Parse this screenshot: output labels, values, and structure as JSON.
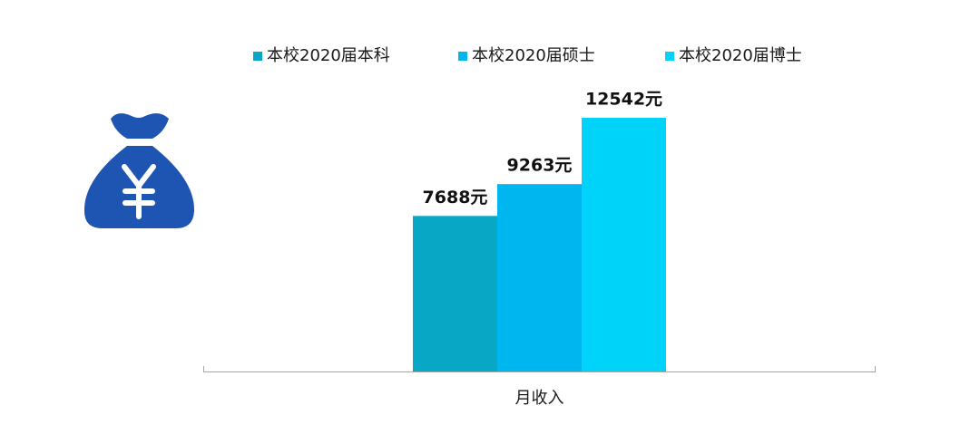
{
  "chart_data": {
    "type": "bar",
    "categories": [
      "月收入"
    ],
    "series": [
      {
        "name": "本校2020届本科",
        "color": "#07a7c5",
        "values": [
          7688
        ],
        "value_labels": [
          "7688元"
        ]
      },
      {
        "name": "本校2020届硕士",
        "color": "#00b6ef",
        "values": [
          9263
        ],
        "value_labels": [
          "9263元"
        ]
      },
      {
        "name": "本校2020届博士",
        "color": "#00d3fa",
        "values": [
          12542
        ],
        "value_labels": [
          "12542元"
        ]
      }
    ],
    "ylim": [
      0,
      14000
    ]
  }
}
